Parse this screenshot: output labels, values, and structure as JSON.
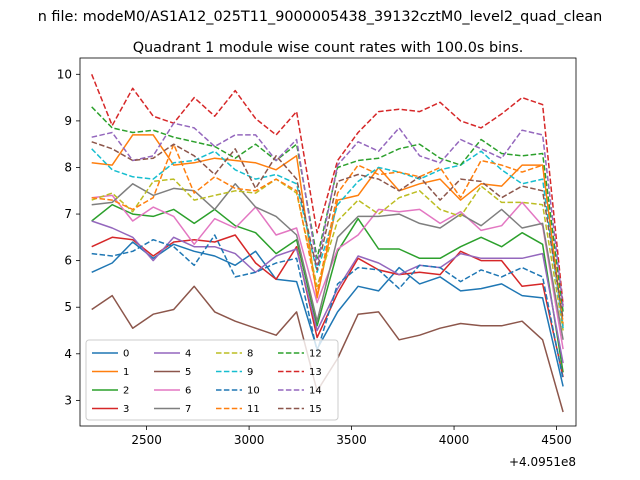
{
  "chart_data": {
    "type": "line",
    "suptitle": "n file: modeM0/AS1A12_025T11_9000005438_39132cztM0_level2_quad_clean",
    "title": "Quadrant 1 module wise count rates with 100.0s bins.",
    "xlabel": "",
    "ylabel": "",
    "x_offset_label": "+4.0951e8",
    "x_offset": 409510000,
    "xlim": [
      409512175,
      409514595
    ],
    "ylim": [
      2.45,
      10.35
    ],
    "xticks": [
      2500,
      3000,
      3500,
      4000,
      4500
    ],
    "yticks": [
      3,
      4,
      5,
      6,
      7,
      8,
      9,
      10
    ],
    "grid": false,
    "legend_position": "lower-left",
    "legend_columns": 4,
    "x": [
      409512232,
      409512332,
      409512432,
      409512532,
      409512632,
      409512732,
      409512832,
      409512932,
      409513032,
      409513132,
      409513232,
      409513332,
      409513432,
      409513532,
      409513632,
      409513732,
      409513832,
      409513932,
      409514032,
      409514132,
      409514232,
      409514332,
      409514432,
      409514532
    ],
    "series": [
      {
        "name": "0",
        "color": "#1f77b4",
        "dash": "solid",
        "values": [
          5.75,
          5.95,
          6.4,
          6.05,
          6.35,
          6.2,
          6.1,
          5.9,
          6.2,
          5.6,
          5.55,
          4.1,
          4.9,
          5.45,
          5.35,
          5.85,
          5.5,
          5.65,
          5.35,
          5.4,
          5.5,
          5.25,
          5.2,
          3.3
        ]
      },
      {
        "name": "1",
        "color": "#ff7f0e",
        "dash": "solid",
        "values": [
          8.1,
          8.05,
          8.7,
          8.7,
          8.05,
          8.1,
          8.2,
          8.15,
          8.1,
          7.95,
          8.25,
          5.2,
          7.3,
          7.4,
          8.0,
          7.5,
          7.65,
          7.75,
          7.3,
          7.65,
          7.6,
          8.05,
          8.05,
          4.6
        ]
      },
      {
        "name": "2",
        "color": "#2ca02c",
        "dash": "solid",
        "values": [
          6.85,
          7.2,
          7.0,
          6.95,
          7.1,
          6.8,
          7.1,
          6.75,
          6.6,
          6.15,
          6.45,
          4.6,
          6.2,
          6.9,
          6.25,
          6.25,
          6.05,
          6.05,
          6.3,
          6.5,
          6.3,
          6.6,
          6.35,
          3.6
        ]
      },
      {
        "name": "3",
        "color": "#d62728",
        "dash": "solid",
        "values": [
          6.3,
          6.5,
          6.45,
          6.1,
          6.4,
          6.45,
          6.4,
          6.55,
          5.95,
          5.6,
          6.3,
          4.35,
          5.3,
          6.05,
          5.8,
          5.7,
          5.75,
          5.7,
          6.2,
          6.0,
          6.0,
          5.45,
          5.5,
          3.5
        ]
      },
      {
        "name": "4",
        "color": "#9467bd",
        "dash": "solid",
        "values": [
          6.85,
          6.7,
          6.5,
          6.0,
          6.5,
          6.3,
          6.3,
          6.15,
          5.75,
          6.1,
          6.25,
          4.5,
          5.4,
          6.1,
          5.95,
          5.7,
          5.9,
          5.85,
          6.15,
          6.05,
          6.05,
          6.05,
          6.15,
          3.8
        ]
      },
      {
        "name": "5",
        "color": "#8c564b",
        "dash": "solid",
        "values": [
          4.95,
          5.25,
          4.55,
          4.85,
          4.95,
          5.45,
          4.9,
          4.7,
          4.55,
          4.4,
          4.9,
          3.2,
          3.9,
          4.85,
          4.9,
          4.3,
          4.4,
          4.55,
          4.65,
          4.6,
          4.6,
          4.7,
          4.3,
          2.75
        ]
      },
      {
        "name": "6",
        "color": "#e377c2",
        "dash": "solid",
        "values": [
          7.35,
          7.4,
          6.85,
          7.15,
          6.95,
          6.35,
          6.9,
          6.7,
          7.15,
          6.55,
          6.7,
          5.1,
          6.25,
          6.55,
          7.1,
          7.05,
          7.1,
          6.8,
          7.05,
          6.65,
          6.75,
          7.25,
          6.75,
          4.1
        ]
      },
      {
        "name": "7",
        "color": "#7f7f7f",
        "dash": "solid",
        "values": [
          7.2,
          7.25,
          7.65,
          7.4,
          7.55,
          7.5,
          7.1,
          7.65,
          7.15,
          6.95,
          6.55,
          4.7,
          6.5,
          6.95,
          6.95,
          7.0,
          6.8,
          6.7,
          7.0,
          6.75,
          7.1,
          6.7,
          6.8,
          4.3
        ]
      },
      {
        "name": "8",
        "color": "#bcbd22",
        "dash": "dashed",
        "values": [
          7.3,
          7.45,
          7.05,
          7.7,
          7.75,
          7.3,
          7.4,
          7.5,
          7.45,
          7.75,
          7.45,
          5.45,
          6.85,
          7.3,
          7.0,
          7.35,
          7.5,
          7.1,
          6.95,
          7.6,
          7.25,
          7.25,
          7.2,
          4.5
        ]
      },
      {
        "name": "9",
        "color": "#17becf",
        "dash": "dashed",
        "values": [
          8.4,
          7.95,
          7.8,
          7.75,
          8.1,
          8.15,
          8.35,
          7.95,
          7.75,
          7.85,
          7.65,
          5.75,
          7.2,
          7.7,
          8.0,
          7.9,
          7.75,
          7.95,
          8.05,
          8.35,
          7.95,
          7.65,
          7.75,
          4.55
        ]
      },
      {
        "name": "10",
        "color": "#1f77b4",
        "dash": "dashed",
        "values": [
          6.15,
          6.1,
          6.2,
          6.45,
          6.3,
          5.9,
          6.55,
          5.65,
          5.75,
          5.95,
          6.05,
          4.05,
          5.5,
          5.85,
          5.8,
          5.4,
          5.9,
          5.85,
          5.55,
          5.8,
          5.65,
          5.85,
          5.65,
          3.45
        ]
      },
      {
        "name": "11",
        "color": "#ff7f0e",
        "dash": "dashed",
        "values": [
          7.35,
          7.3,
          7.1,
          7.35,
          8.5,
          7.45,
          7.8,
          7.55,
          7.5,
          7.75,
          7.5,
          5.3,
          7.45,
          8.05,
          7.85,
          7.9,
          7.8,
          8.0,
          7.35,
          8.15,
          8.05,
          7.9,
          8.05,
          4.65
        ]
      },
      {
        "name": "12",
        "color": "#2ca02c",
        "dash": "dashed",
        "values": [
          9.3,
          8.85,
          8.75,
          8.8,
          8.65,
          8.55,
          8.45,
          8.2,
          8.5,
          8.15,
          8.5,
          6.05,
          8.0,
          8.15,
          8.2,
          8.4,
          8.5,
          8.2,
          8.05,
          8.6,
          8.3,
          8.25,
          8.3,
          4.9
        ]
      },
      {
        "name": "13",
        "color": "#d62728",
        "dash": "dashed",
        "values": [
          10.0,
          8.9,
          9.7,
          9.1,
          8.95,
          9.5,
          9.1,
          9.65,
          9.05,
          8.7,
          9.2,
          6.6,
          8.15,
          8.75,
          9.2,
          9.25,
          9.2,
          9.4,
          9.0,
          8.85,
          9.15,
          9.5,
          9.35,
          5.05
        ]
      },
      {
        "name": "14",
        "color": "#9467bd",
        "dash": "dashed",
        "values": [
          8.65,
          8.75,
          8.15,
          8.25,
          8.95,
          8.85,
          8.45,
          8.7,
          8.7,
          8.15,
          8.6,
          5.9,
          8.05,
          8.55,
          8.35,
          8.85,
          8.25,
          8.1,
          8.6,
          8.4,
          8.2,
          8.8,
          8.7,
          5.0
        ]
      },
      {
        "name": "15",
        "color": "#8c564b",
        "dash": "dashed",
        "values": [
          8.55,
          8.4,
          8.15,
          8.2,
          8.5,
          8.25,
          7.85,
          8.4,
          7.55,
          8.25,
          7.75,
          5.8,
          7.7,
          7.85,
          7.75,
          7.5,
          7.8,
          7.3,
          7.75,
          7.7,
          7.35,
          7.6,
          7.5,
          4.75
        ]
      }
    ]
  }
}
